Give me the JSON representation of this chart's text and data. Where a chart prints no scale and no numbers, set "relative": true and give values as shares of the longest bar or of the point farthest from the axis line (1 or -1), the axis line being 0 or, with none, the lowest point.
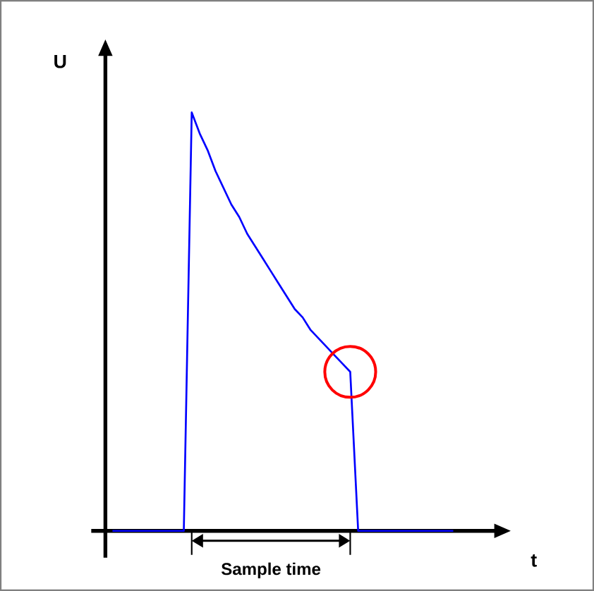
{
  "chart_data": {
    "type": "line",
    "relative": true,
    "xlabel": "t",
    "ylabel": "U",
    "annotations": [
      "Sample time"
    ],
    "categories": [
      null,
      null,
      null,
      null,
      null,
      null,
      null,
      null,
      null,
      null,
      null,
      null,
      null,
      null,
      null,
      null,
      null,
      null,
      null,
      null,
      null,
      null,
      null,
      null,
      null,
      null,
      null,
      null,
      null,
      null,
      null,
      null,
      null,
      null,
      null,
      null,
      null,
      null,
      null,
      null,
      null,
      null,
      null,
      null
    ],
    "series": [
      {
        "color": "#0000ff",
        "values": [
          0,
          0,
          0,
          0,
          0,
          0,
          0,
          0,
          0,
          0,
          1.0,
          0.95,
          0.91,
          0.86,
          0.82,
          0.78,
          0.75,
          0.71,
          0.68,
          0.65,
          0.62,
          0.59,
          0.56,
          0.53,
          0.51,
          0.48,
          0.46,
          0.44,
          0.42,
          0.4,
          0.38,
          0,
          0,
          0,
          0,
          0,
          0,
          0,
          0,
          0,
          0,
          0,
          0,
          0
        ]
      }
    ]
  }
}
